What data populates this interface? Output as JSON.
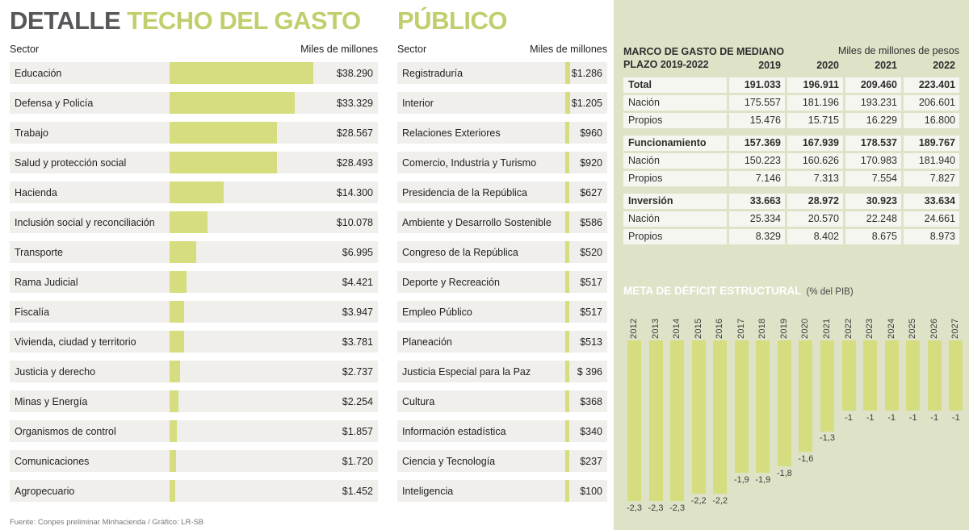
{
  "page_title": {
    "detalle": "DETALLE",
    "techo": "TECHO DEL GASTO",
    "publico": "PÚBLICO"
  },
  "columns": {
    "sector": "Sector",
    "value": "Miles de millones"
  },
  "table_header": {
    "title_line1": "MARCO DE GASTO DE MEDIANO",
    "title_line2": "PLAZO 2019-2022"
  },
  "footer": "Fuente: Conpes preliminar Minhacienda / Gráfico: LR-SB",
  "colors": {
    "bar": "#d5dd7e",
    "panel_bg": "#dee3c8",
    "row_bg": "#f0efeb",
    "cell_bg": "#f6f6f1",
    "title_green": "#c2ce6c",
    "title_gray": "#56575a",
    "deficit_title": "#ffffff"
  },
  "chart_data": [
    {
      "id": "techo-gasto-sectores-mayores",
      "type": "bar",
      "orientation": "horizontal",
      "unit": "Miles de millones",
      "categories": [
        "Educación",
        "Defensa y Policía",
        "Trabajo",
        "Salud y protección social",
        "Hacienda",
        "Inclusión social y reconciliación",
        "Transporte",
        "Rama Judicial",
        "Fiscalía",
        "Vivienda, ciudad y territorio",
        "Justicia y derecho",
        "Minas y Energía",
        "Organismos de control",
        "Comunicaciones",
        "Agropecuario"
      ],
      "values": [
        38290,
        33329,
        28567,
        28493,
        14300,
        10078,
        6995,
        4421,
        3947,
        3781,
        2737,
        2254,
        1857,
        1720,
        1452
      ],
      "value_labels": [
        "$38.290",
        "$33.329",
        "$28.567",
        "$28.493",
        "$14.300",
        "$10.078",
        "$6.995",
        "$4.421",
        "$3.947",
        "$3.781",
        "$2.737",
        "$2.254",
        "$1.857",
        "$1.720",
        "$1.452"
      ]
    },
    {
      "id": "techo-gasto-sectores-menores",
      "type": "bar",
      "orientation": "horizontal",
      "unit": "Miles de millones",
      "categories": [
        "Registraduría",
        "Interior",
        "Relaciones Exteriores",
        "Comercio, Industria y Turismo",
        "Presidencia de la República",
        "Ambiente y Desarrollo Sostenible",
        "Congreso de la República",
        "Deporte y Recreación",
        "Empleo Público",
        "Planeación",
        "Justicia Especial para la Paz",
        "Cultura",
        "Información estadística",
        "Ciencia y Tecnología",
        "Inteligencia"
      ],
      "values": [
        1286,
        1205,
        960,
        920,
        627,
        586,
        520,
        517,
        517,
        513,
        396,
        368,
        340,
        237,
        100
      ],
      "value_labels": [
        "$1.286",
        "$1.205",
        "$960",
        "$920",
        "$627",
        "$586",
        "$520",
        "$517",
        "$517",
        "$513",
        "$ 396",
        "$368",
        "$340",
        "$237",
        "$100"
      ]
    },
    {
      "id": "marco-gasto-mediano-plazo",
      "type": "table",
      "title": "MARCO DE GASTO DE MEDIANO PLAZO 2019-2022",
      "subtitle": "Miles de millones de pesos",
      "columns": [
        "2019",
        "2020",
        "2021",
        "2022"
      ],
      "rows": [
        {
          "label": "Total",
          "bold": true,
          "gap_before": false,
          "values": [
            "191.033",
            "196.911",
            "209.460",
            "223.401"
          ]
        },
        {
          "label": "Nación",
          "bold": false,
          "gap_before": false,
          "values": [
            "175.557",
            "181.196",
            "193.231",
            "206.601"
          ]
        },
        {
          "label": "Propios",
          "bold": false,
          "gap_before": false,
          "values": [
            "15.476",
            "15.715",
            "16.229",
            "16.800"
          ]
        },
        {
          "label": "Funcionamiento",
          "bold": true,
          "gap_before": true,
          "values": [
            "157.369",
            "167.939",
            "178.537",
            "189.767"
          ]
        },
        {
          "label": "Nación",
          "bold": false,
          "gap_before": false,
          "values": [
            "150.223",
            "160.626",
            "170.983",
            "181.940"
          ]
        },
        {
          "label": "Propios",
          "bold": false,
          "gap_before": false,
          "values": [
            "7.146",
            "7.313",
            "7.554",
            "7.827"
          ]
        },
        {
          "label": "Inversión",
          "bold": true,
          "gap_before": true,
          "values": [
            "33.663",
            "28.972",
            "30.923",
            "33.634"
          ]
        },
        {
          "label": "Nación",
          "bold": false,
          "gap_before": false,
          "values": [
            "25.334",
            "20.570",
            "22.248",
            "24.661"
          ]
        },
        {
          "label": "Propios",
          "bold": false,
          "gap_before": false,
          "values": [
            "8.329",
            "8.402",
            "8.675",
            "8.973"
          ]
        }
      ]
    },
    {
      "id": "meta-deficit-estructural",
      "type": "bar",
      "orientation": "vertical",
      "title": "META DE DÉFICIT ESTRUCTURAL",
      "subtitle": "(% del PIB)",
      "categories": [
        "2012",
        "2013",
        "2014",
        "2015",
        "2016",
        "2017",
        "2018",
        "2019",
        "2020",
        "2021",
        "2022",
        "2023",
        "2024",
        "2025",
        "2026",
        "2027"
      ],
      "values": [
        -2.3,
        -2.3,
        -2.3,
        -2.2,
        -2.2,
        -1.9,
        -1.9,
        -1.8,
        -1.6,
        -1.3,
        -1,
        -1,
        -1,
        -1,
        -1,
        -1
      ],
      "value_labels": [
        "-2,3",
        "-2,3",
        "-2,3",
        "-2,2",
        "-2,2",
        "-1,9",
        "-1,9",
        "-1,8",
        "-1,6",
        "-1,3",
        "-1",
        "-1",
        "-1",
        "-1",
        "-1",
        "-1"
      ],
      "ylim": [
        -2.5,
        0
      ]
    }
  ]
}
